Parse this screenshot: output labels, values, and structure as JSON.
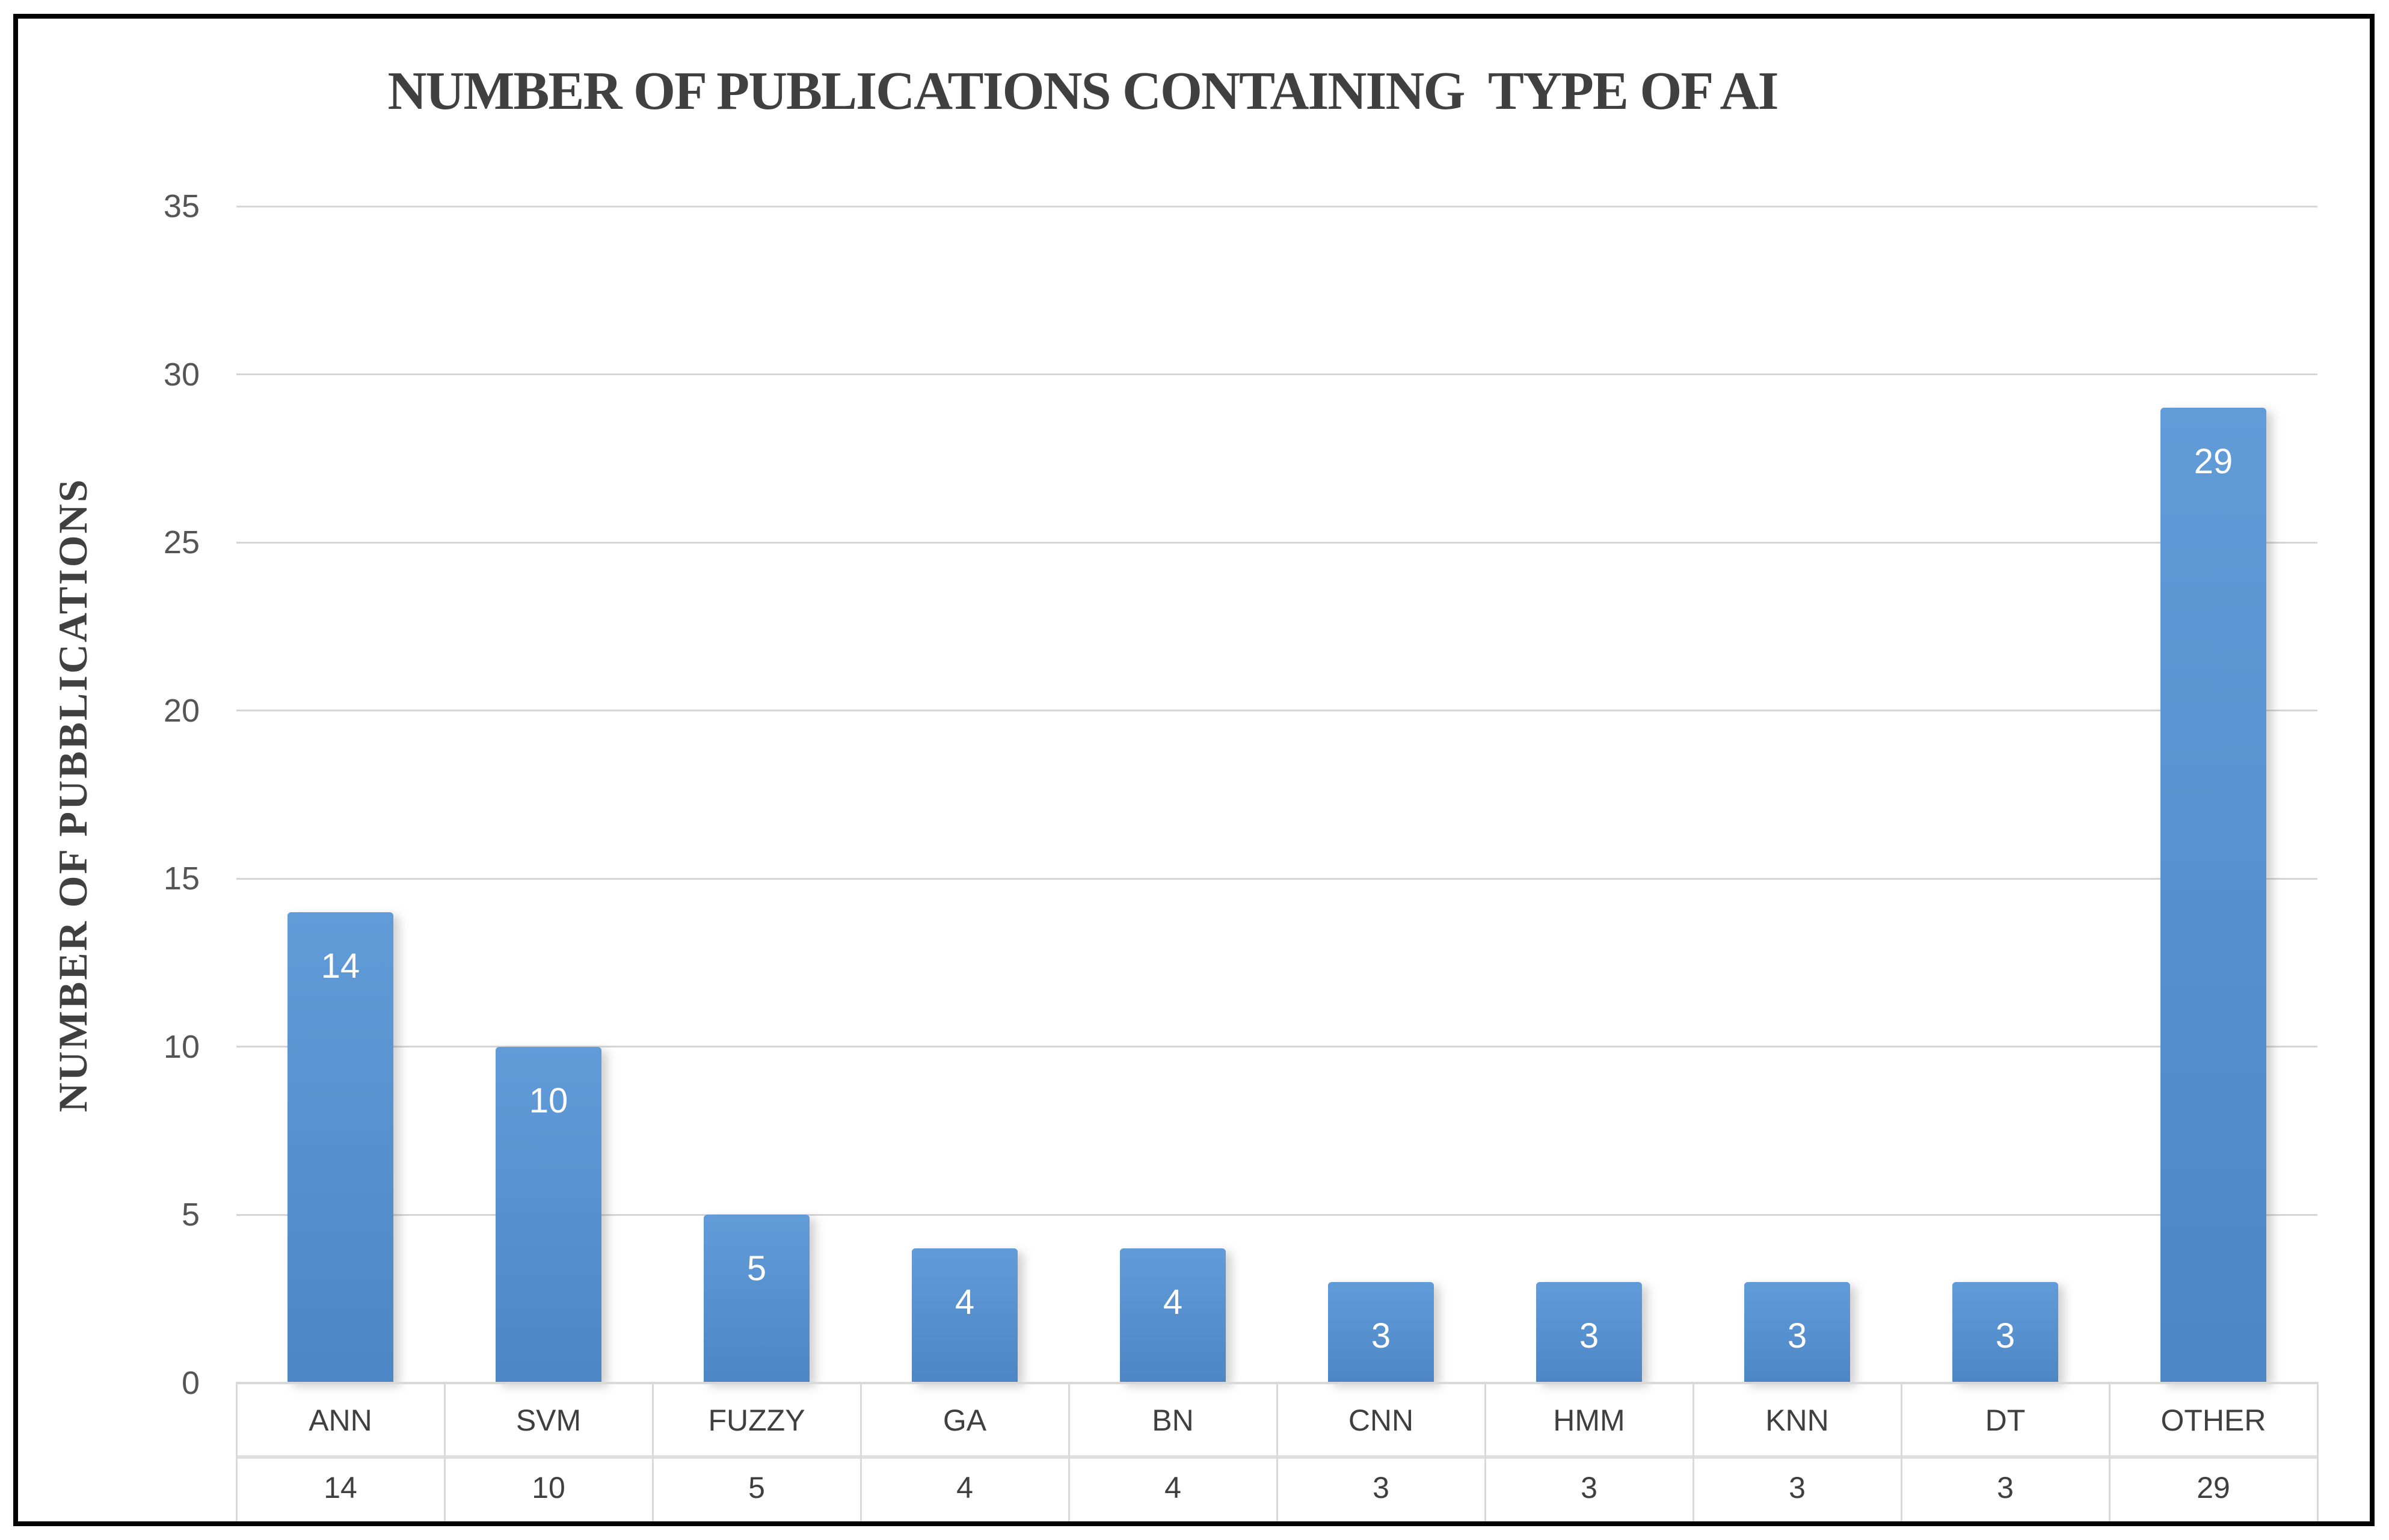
{
  "chart": {
    "title": "NUMBER OF PUBLICATIONS CONTAINING  TYPE OF AI",
    "y_axis_title": "NUMBER OF PUBBLICATIONS"
  },
  "chart_data": {
    "type": "bar",
    "title": "NUMBER OF PUBLICATIONS CONTAINING  TYPE OF AI",
    "categories": [
      "ANN",
      "SVM",
      "FUZZY",
      "GA",
      "BN",
      "CNN",
      "HMM",
      "KNN",
      "DT",
      "OTHER"
    ],
    "values": [
      14,
      10,
      5,
      4,
      4,
      3,
      3,
      3,
      3,
      29
    ],
    "xlabel": "",
    "ylabel": "NUMBER OF PUBBLICATIONS",
    "ylim": [
      0,
      35
    ],
    "yticks": [
      0,
      5,
      10,
      15,
      20,
      25,
      30,
      35
    ],
    "grid": true,
    "legend": false,
    "bar_value_labels_shown": true,
    "data_table_shown": true,
    "data_table_rows": {
      "categories": [
        "ANN",
        "SVM",
        "FUZZY",
        "GA",
        "BN",
        "CNN",
        "HMM",
        "KNN",
        "DT",
        "OTHER"
      ],
      "values": [
        "14",
        "10",
        "5",
        "4",
        "4",
        "3",
        "3",
        "3",
        "3",
        "29"
      ]
    }
  },
  "colors": {
    "bar": "#5B9BD5",
    "bar_gradient_top": "#619BD8",
    "bar_gradient_bottom": "#4C86C5",
    "gridline": "#D6D6D6",
    "title_text": "#404040",
    "tick_text": "#555555",
    "table_text": "#3F3F3F",
    "bar_label_text": "#FFFFFF",
    "frame_border": "#000000"
  }
}
